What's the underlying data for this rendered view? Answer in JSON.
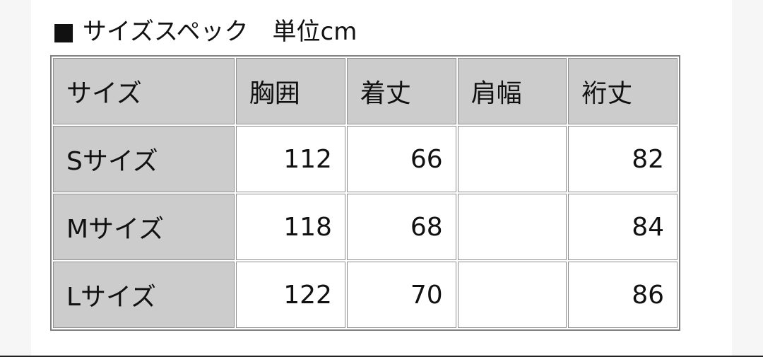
{
  "title": "■ サイズスペック　単位cm",
  "table": {
    "headers": [
      "サイズ",
      "胸囲",
      "着丈",
      "肩幅",
      "裄丈"
    ],
    "rows": [
      [
        "Sサイズ",
        "112",
        "66",
        "",
        "82"
      ],
      [
        "Mサイズ",
        "118",
        "68",
        "",
        "84"
      ],
      [
        "Lサイズ",
        "122",
        "70",
        "",
        "86"
      ]
    ]
  },
  "colors": {
    "header_bg": "#cccccc",
    "border": "#808080"
  }
}
